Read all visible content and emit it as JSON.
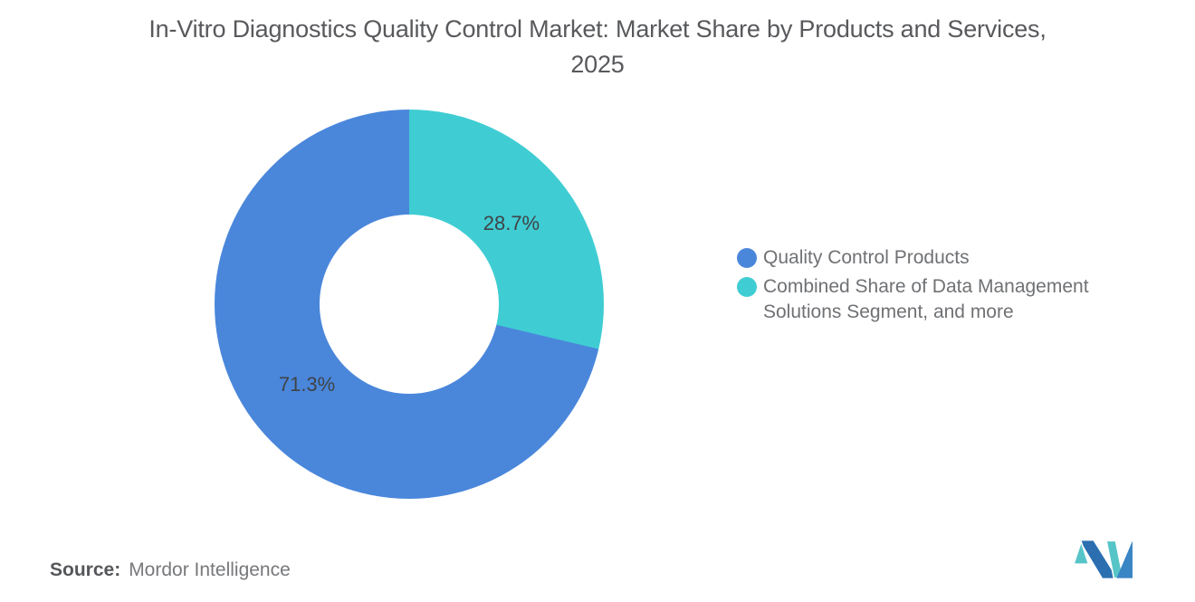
{
  "chart_data": {
    "type": "pie",
    "subtype": "donut",
    "title": "In-Vitro Diagnostics Quality Control Market: Market Share by Products and Services, 2025",
    "unit": "%",
    "slices": [
      {
        "label": "Quality Control Products",
        "value": 71.3,
        "display": "71.3%",
        "color": "#4a87db"
      },
      {
        "label": "Combined Share of Data Management Solutions Segment, and more",
        "value": 28.7,
        "display": "28.7%",
        "color": "#3fcdd3"
      }
    ],
    "start_angle_deg": 0,
    "direction": "clockwise",
    "first_drawn_slice_index": 1,
    "legend_position": "right",
    "slice_label_color": "#3f4347",
    "hole_ratio": 0.46
  },
  "source": {
    "prefix": "Source:",
    "text": "Mordor Intelligence"
  },
  "logo": {
    "name": "mordor-intelligence-logo",
    "blue_dark": "#2b6fb0",
    "blue_light": "#3a85c4",
    "teal": "#57c5c8"
  },
  "colors": {
    "background": "#ffffff",
    "title": "#58595c",
    "legend_text": "#6f7174"
  }
}
